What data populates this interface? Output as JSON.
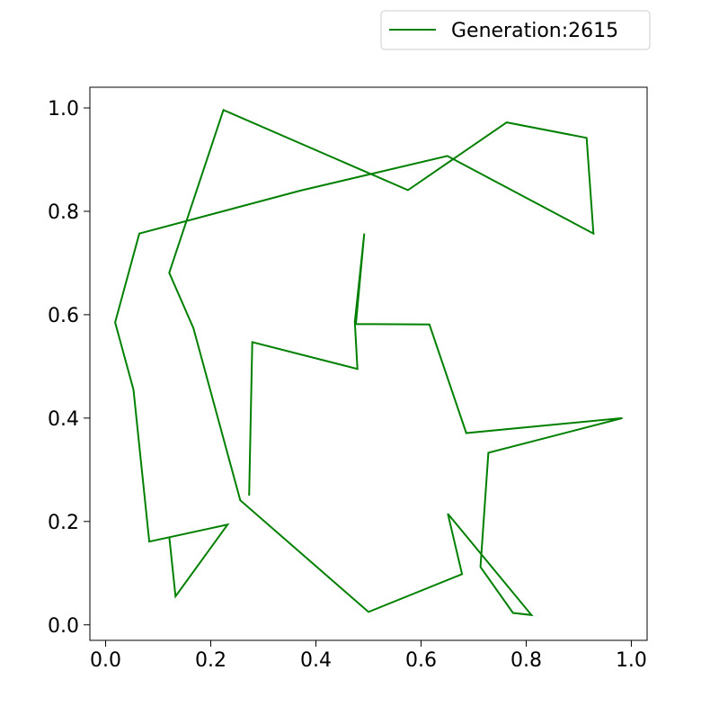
{
  "chart_data": {
    "type": "line",
    "title": "",
    "xlabel": "",
    "ylabel": "",
    "xlim": [
      -0.03,
      1.03
    ],
    "ylim": [
      -0.03,
      1.04
    ],
    "grid": false,
    "legend_placement": "top-right, above plot",
    "x_ticks": [
      "0.0",
      "0.2",
      "0.4",
      "0.6",
      "0.8",
      "1.0"
    ],
    "y_ticks": [
      "0.0",
      "0.2",
      "0.4",
      "0.6",
      "0.8",
      "1.0"
    ],
    "series": [
      {
        "name": "Generation:2615",
        "color": "#008000",
        "x": [
          0.273,
          0.279,
          0.479,
          0.474,
          0.492,
          0.476,
          0.616,
          0.686,
          0.983,
          0.728,
          0.713,
          0.775,
          0.81,
          0.651,
          0.678,
          0.5,
          0.256,
          0.167,
          0.121,
          0.224,
          0.575,
          0.763,
          0.915,
          0.928,
          0.65,
          0.37,
          0.064,
          0.018,
          0.053,
          0.083,
          0.232,
          0.133,
          0.121
        ],
        "y": [
          0.25,
          0.547,
          0.495,
          0.586,
          0.757,
          0.582,
          0.581,
          0.371,
          0.4,
          0.333,
          0.112,
          0.023,
          0.019,
          0.215,
          0.098,
          0.025,
          0.241,
          0.574,
          0.681,
          0.996,
          0.841,
          0.972,
          0.942,
          0.757,
          0.907,
          0.84,
          0.757,
          0.585,
          0.455,
          0.161,
          0.194,
          0.055,
          0.171
        ]
      }
    ]
  }
}
